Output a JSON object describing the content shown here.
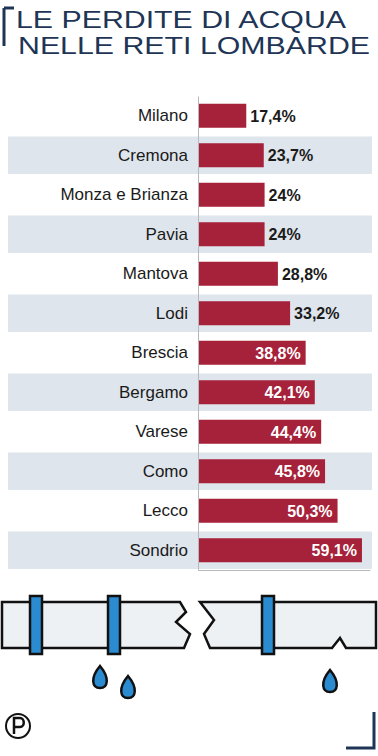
{
  "chart_data": {
    "type": "bar",
    "orientation": "horizontal",
    "title": "LE PERDITE DI ACQUA\nNELLE RETI LOMBARDE",
    "categories": [
      "Milano",
      "Cremona",
      "Monza e Brianza",
      "Pavia",
      "Mantova",
      "Lodi",
      "Brescia",
      "Bergamo",
      "Varese",
      "Como",
      "Lecco",
      "Sondrio"
    ],
    "values": [
      17.4,
      23.7,
      24,
      24,
      28.8,
      33.2,
      38.8,
      42.1,
      44.4,
      45.8,
      50.3,
      59.1
    ],
    "value_labels": [
      "17,4%",
      "23,7%",
      "24%",
      "24%",
      "28,8%",
      "33,2%",
      "38,8%",
      "42,1%",
      "44,4%",
      "45,8%",
      "50,3%",
      "59,1%"
    ],
    "color": "#a6213a",
    "xlim": [
      0,
      62
    ],
    "data_labels": true,
    "tick_labels": "y"
  }
}
